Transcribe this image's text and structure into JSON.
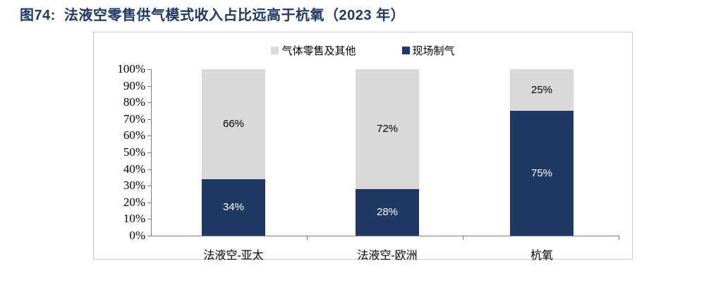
{
  "title": "图74:  法液空零售供气模式收入占比远高于杭氧（2023 年）",
  "colors": {
    "title": "#1f3864",
    "axis": "#7f7f7f",
    "panel_border": "#cbcbcb",
    "background": "#ffffff"
  },
  "chart_data": {
    "type": "bar",
    "subtype": "stacked_percent_column",
    "title": "图74:  法液空零售供气模式收入占比远高于杭氧（2023 年）",
    "categories": [
      "法液空-亚太",
      "法液空-欧洲",
      "杭氧"
    ],
    "series": [
      {
        "name": "现场制气",
        "color": "#1f3864",
        "text_color": "#ffffff",
        "stack_position": "bottom",
        "values": [
          34,
          28,
          75
        ]
      },
      {
        "name": "气体零售及其他",
        "color": "#d9d9d9",
        "text_color": "#000000",
        "stack_position": "top",
        "values": [
          66,
          72,
          25
        ]
      }
    ],
    "data_label_suffix": "%",
    "y_axis": {
      "min": 0,
      "max": 100,
      "step": 10,
      "suffix": "%"
    },
    "legend": {
      "position": "top-center",
      "order": [
        "气体零售及其他",
        "现场制气"
      ]
    },
    "grid": false
  }
}
